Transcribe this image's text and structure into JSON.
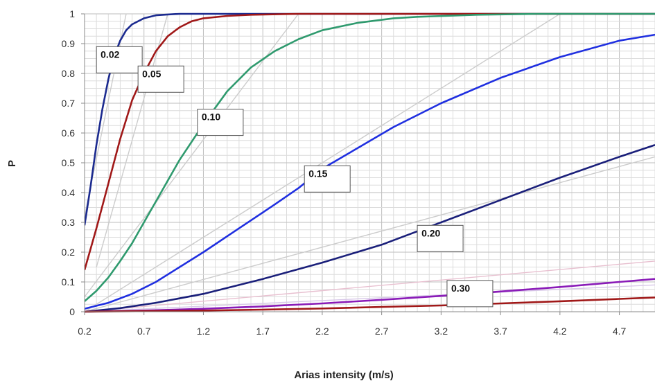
{
  "chart_data": {
    "type": "line",
    "xlabel": "Arias intensity (m/s)",
    "ylabel": "P",
    "xlim": [
      0.2,
      5.0
    ],
    "ylim": [
      0,
      1
    ],
    "xticks": [
      "0.2",
      "0.7",
      "1.2",
      "1.7",
      "2.2",
      "2.7",
      "3.2",
      "3.7",
      "4.2",
      "4.7"
    ],
    "yticks": [
      "0",
      "0.1",
      "0.2",
      "0.3",
      "0.4",
      "0.5",
      "0.6",
      "0.7",
      "0.8",
      "0.9",
      "1"
    ],
    "grid": true,
    "series": [
      {
        "label": "0.02",
        "color": "#1b2a8f",
        "x": [
          0.2,
          0.25,
          0.3,
          0.35,
          0.4,
          0.45,
          0.5,
          0.55,
          0.6,
          0.7,
          0.8,
          0.9,
          1.0,
          1.2,
          1.5,
          2.0,
          3.0,
          5.0
        ],
        "y": [
          0.29,
          0.42,
          0.56,
          0.68,
          0.78,
          0.86,
          0.91,
          0.945,
          0.965,
          0.985,
          0.995,
          0.998,
          1.0,
          1.0,
          1.0,
          1.0,
          1.0,
          1.0
        ]
      },
      {
        "label": "0.05",
        "color": "#a01818",
        "x": [
          0.2,
          0.3,
          0.4,
          0.5,
          0.6,
          0.7,
          0.8,
          0.9,
          1.0,
          1.1,
          1.2,
          1.4,
          1.6,
          2.0,
          2.5,
          3.0,
          5.0
        ],
        "y": [
          0.14,
          0.28,
          0.43,
          0.58,
          0.71,
          0.8,
          0.875,
          0.925,
          0.955,
          0.975,
          0.985,
          0.993,
          0.997,
          1.0,
          1.0,
          1.0,
          1.0
        ]
      },
      {
        "label": "0.10",
        "color": "#2f9a6e",
        "x": [
          0.2,
          0.3,
          0.4,
          0.5,
          0.6,
          0.7,
          0.8,
          0.9,
          1.0,
          1.2,
          1.4,
          1.6,
          1.8,
          2.0,
          2.2,
          2.5,
          2.8,
          3.0,
          3.5,
          4.0,
          5.0
        ],
        "y": [
          0.035,
          0.07,
          0.115,
          0.17,
          0.23,
          0.3,
          0.37,
          0.44,
          0.51,
          0.63,
          0.74,
          0.82,
          0.875,
          0.915,
          0.945,
          0.97,
          0.985,
          0.99,
          0.997,
          1.0,
          1.0
        ]
      },
      {
        "label": "0.15",
        "color": "#1f2fe0",
        "x": [
          0.2,
          0.4,
          0.6,
          0.8,
          1.0,
          1.2,
          1.5,
          1.8,
          2.0,
          2.2,
          2.5,
          2.8,
          3.2,
          3.7,
          4.2,
          4.7,
          5.0
        ],
        "y": [
          0.01,
          0.03,
          0.06,
          0.1,
          0.15,
          0.2,
          0.28,
          0.36,
          0.415,
          0.48,
          0.55,
          0.62,
          0.7,
          0.785,
          0.855,
          0.91,
          0.93
        ]
      },
      {
        "label": "0.20",
        "color": "#1a1f7a",
        "x": [
          0.2,
          0.5,
          0.8,
          1.2,
          1.7,
          2.2,
          2.7,
          3.2,
          3.7,
          4.2,
          4.7,
          5.0
        ],
        "y": [
          0.0,
          0.012,
          0.03,
          0.06,
          0.11,
          0.165,
          0.225,
          0.3,
          0.375,
          0.45,
          0.52,
          0.56
        ]
      },
      {
        "label": "0.30",
        "color": "#8a1bb8",
        "x": [
          0.2,
          0.7,
          1.2,
          1.7,
          2.2,
          2.7,
          3.2,
          3.7,
          4.2,
          4.7,
          5.0
        ],
        "y": [
          0.0,
          0.004,
          0.01,
          0.018,
          0.028,
          0.04,
          0.053,
          0.068,
          0.083,
          0.1,
          0.11
        ]
      },
      {
        "label": "",
        "color": "#a01818",
        "x": [
          0.2,
          0.7,
          1.2,
          1.7,
          2.2,
          2.7,
          3.2,
          3.7,
          4.2,
          4.7,
          5.0
        ],
        "y": [
          0.0,
          0.002,
          0.004,
          0.007,
          0.011,
          0.016,
          0.021,
          0.028,
          0.035,
          0.043,
          0.048
        ]
      }
    ],
    "reference_lines": [
      {
        "color": "#cccccc",
        "x": [
          0.2,
          0.55
        ],
        "y": [
          0.32,
          1.0
        ]
      },
      {
        "color": "#cccccc",
        "x": [
          0.3,
          0.9
        ],
        "y": [
          0.15,
          1.0
        ]
      },
      {
        "color": "#cccccc",
        "x": [
          0.2,
          2.0
        ],
        "y": [
          0.05,
          1.0
        ]
      },
      {
        "color": "#cccccc",
        "x": [
          0.2,
          4.2
        ],
        "y": [
          0.0,
          1.0
        ]
      },
      {
        "color": "#cccccc",
        "x": [
          0.2,
          5.0
        ],
        "y": [
          0.0,
          0.52
        ]
      },
      {
        "color": "#e8c0d0",
        "x": [
          0.2,
          5.0
        ],
        "y": [
          0.0,
          0.17
        ]
      },
      {
        "color": "#d8c8e8",
        "x": [
          0.2,
          5.0
        ],
        "y": [
          0.0,
          0.09
        ]
      }
    ],
    "annotations": [
      {
        "text": "0.02",
        "x": 0.3,
        "y": 0.89
      },
      {
        "text": "0.05",
        "x": 0.65,
        "y": 0.825
      },
      {
        "text": "0.10",
        "x": 1.15,
        "y": 0.68
      },
      {
        "text": "0.15",
        "x": 2.05,
        "y": 0.49
      },
      {
        "text": "0.20",
        "x": 3.0,
        "y": 0.29
      },
      {
        "text": "0.30",
        "x": 3.25,
        "y": 0.105
      }
    ]
  }
}
